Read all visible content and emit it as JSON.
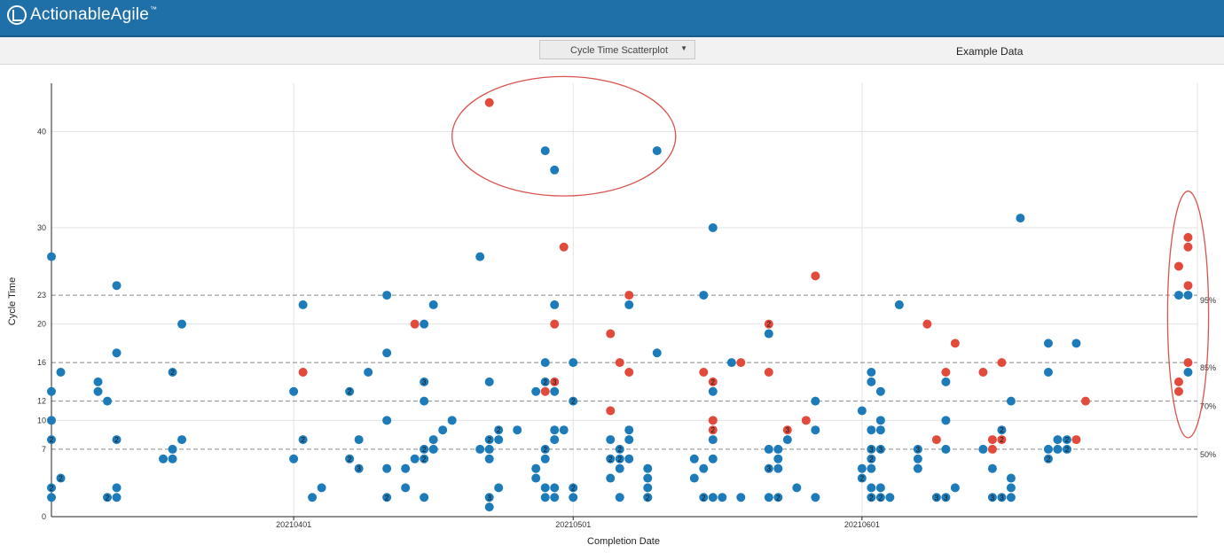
{
  "app": {
    "name": "ActionableAgile",
    "tm": "™"
  },
  "toolbar": {
    "chart_select": "Cycle Time Scatterplot",
    "dataset_label": "Example Data"
  },
  "colors": {
    "header": "#1f6fa8",
    "blue_point": "#1c7bb8",
    "red_point": "#e24a3b",
    "highlight": "#d9534f"
  },
  "chart_data": {
    "type": "scatter",
    "xlabel": "Completion Date",
    "ylabel": "Cycle Time",
    "x_range": [
      "2021-03-06",
      "2021-07-07"
    ],
    "y_range": [
      0,
      45
    ],
    "x_ticks": [
      {
        "date": "2021-04-01",
        "label": "20210401"
      },
      {
        "date": "2021-05-01",
        "label": "20210501"
      },
      {
        "date": "2021-06-01",
        "label": "20210601"
      }
    ],
    "y_ticks": [
      {
        "v": 0,
        "label": "0"
      },
      {
        "v": 7,
        "label": "7"
      },
      {
        "v": 10,
        "label": "10"
      },
      {
        "v": 12,
        "label": "12"
      },
      {
        "v": 16,
        "label": "16"
      },
      {
        "v": 20,
        "label": "20"
      },
      {
        "v": 23,
        "label": "23"
      },
      {
        "v": 30,
        "label": "30"
      },
      {
        "v": 40,
        "label": "40"
      }
    ],
    "percentiles": [
      {
        "label": "95%",
        "value": 23
      },
      {
        "label": "85%",
        "value": 16
      },
      {
        "label": "70%",
        "value": 12
      },
      {
        "label": "50%",
        "value": 7
      }
    ],
    "highlights": [
      {
        "cx": "2021-04-30",
        "cy": 39.5,
        "rx": "12d",
        "ry": 6.2
      },
      {
        "cx": "2021-07-06",
        "cy": 21,
        "rx": "2.2d",
        "ry": 12.8
      }
    ],
    "points": [
      {
        "x": "2021-03-06",
        "y": 27,
        "c": "b"
      },
      {
        "x": "2021-03-06",
        "y": 13,
        "c": "b"
      },
      {
        "x": "2021-03-06",
        "y": 10,
        "c": "b"
      },
      {
        "x": "2021-03-06",
        "y": 8,
        "c": "b",
        "n": 2
      },
      {
        "x": "2021-03-06",
        "y": 3,
        "c": "b",
        "n": 2
      },
      {
        "x": "2021-03-06",
        "y": 2,
        "c": "b"
      },
      {
        "x": "2021-03-07",
        "y": 15,
        "c": "b"
      },
      {
        "x": "2021-03-07",
        "y": 4,
        "c": "b",
        "n": 2
      },
      {
        "x": "2021-03-11",
        "y": 14,
        "c": "b"
      },
      {
        "x": "2021-03-11",
        "y": 13,
        "c": "b"
      },
      {
        "x": "2021-03-12",
        "y": 12,
        "c": "b"
      },
      {
        "x": "2021-03-12",
        "y": 2,
        "c": "b",
        "n": 2
      },
      {
        "x": "2021-03-13",
        "y": 24,
        "c": "b"
      },
      {
        "x": "2021-03-13",
        "y": 17,
        "c": "b"
      },
      {
        "x": "2021-03-13",
        "y": 8,
        "c": "b",
        "n": 2
      },
      {
        "x": "2021-03-13",
        "y": 3,
        "c": "b"
      },
      {
        "x": "2021-03-13",
        "y": 2,
        "c": "b"
      },
      {
        "x": "2021-03-18",
        "y": 6,
        "c": "b"
      },
      {
        "x": "2021-03-19",
        "y": 7,
        "c": "b"
      },
      {
        "x": "2021-03-19",
        "y": 6,
        "c": "b"
      },
      {
        "x": "2021-03-19",
        "y": 15,
        "c": "b",
        "n": 2
      },
      {
        "x": "2021-03-20",
        "y": 20,
        "c": "b"
      },
      {
        "x": "2021-03-20",
        "y": 8,
        "c": "b"
      },
      {
        "x": "2021-04-01",
        "y": 13,
        "c": "b"
      },
      {
        "x": "2021-04-01",
        "y": 6,
        "c": "b"
      },
      {
        "x": "2021-04-02",
        "y": 22,
        "c": "b"
      },
      {
        "x": "2021-04-02",
        "y": 15,
        "c": "r"
      },
      {
        "x": "2021-04-02",
        "y": 8,
        "c": "b",
        "n": 2
      },
      {
        "x": "2021-04-03",
        "y": 2,
        "c": "b"
      },
      {
        "x": "2021-04-04",
        "y": 3,
        "c": "b"
      },
      {
        "x": "2021-04-07",
        "y": 13,
        "c": "b",
        "n": 2
      },
      {
        "x": "2021-04-07",
        "y": 6,
        "c": "b",
        "n": 2
      },
      {
        "x": "2021-04-08",
        "y": 8,
        "c": "b"
      },
      {
        "x": "2021-04-08",
        "y": 5,
        "c": "b",
        "n": 3
      },
      {
        "x": "2021-04-09",
        "y": 15,
        "c": "b"
      },
      {
        "x": "2021-04-11",
        "y": 23,
        "c": "b"
      },
      {
        "x": "2021-04-11",
        "y": 17,
        "c": "b"
      },
      {
        "x": "2021-04-11",
        "y": 10,
        "c": "b"
      },
      {
        "x": "2021-04-11",
        "y": 5,
        "c": "b"
      },
      {
        "x": "2021-04-11",
        "y": 2,
        "c": "b",
        "n": 2
      },
      {
        "x": "2021-04-13",
        "y": 5,
        "c": "b"
      },
      {
        "x": "2021-04-13",
        "y": 3,
        "c": "b"
      },
      {
        "x": "2021-04-14",
        "y": 20,
        "c": "r"
      },
      {
        "x": "2021-04-14",
        "y": 6,
        "c": "b"
      },
      {
        "x": "2021-04-15",
        "y": 20,
        "c": "b"
      },
      {
        "x": "2021-04-15",
        "y": 14,
        "c": "b",
        "n": 3
      },
      {
        "x": "2021-04-15",
        "y": 12,
        "c": "b"
      },
      {
        "x": "2021-04-15",
        "y": 7,
        "c": "b",
        "n": 2
      },
      {
        "x": "2021-04-15",
        "y": 6,
        "c": "b",
        "n": 2
      },
      {
        "x": "2021-04-15",
        "y": 2,
        "c": "b"
      },
      {
        "x": "2021-04-16",
        "y": 22,
        "c": "b"
      },
      {
        "x": "2021-04-16",
        "y": 8,
        "c": "b"
      },
      {
        "x": "2021-04-16",
        "y": 7,
        "c": "b"
      },
      {
        "x": "2021-04-17",
        "y": 9,
        "c": "b"
      },
      {
        "x": "2021-04-18",
        "y": 10,
        "c": "b"
      },
      {
        "x": "2021-04-21",
        "y": 7,
        "c": "b"
      },
      {
        "x": "2021-04-21",
        "y": 27,
        "c": "b"
      },
      {
        "x": "2021-04-22",
        "y": 43,
        "c": "r"
      },
      {
        "x": "2021-04-22",
        "y": 14,
        "c": "b"
      },
      {
        "x": "2021-04-22",
        "y": 8,
        "c": "b",
        "n": 2
      },
      {
        "x": "2021-04-22",
        "y": 7,
        "c": "b"
      },
      {
        "x": "2021-04-22",
        "y": 6,
        "c": "b"
      },
      {
        "x": "2021-04-22",
        "y": 2,
        "c": "b",
        "n": 3
      },
      {
        "x": "2021-04-22",
        "y": 1,
        "c": "b"
      },
      {
        "x": "2021-04-23",
        "y": 9,
        "c": "b",
        "n": 2
      },
      {
        "x": "2021-04-23",
        "y": 8,
        "c": "b"
      },
      {
        "x": "2021-04-23",
        "y": 3,
        "c": "b"
      },
      {
        "x": "2021-04-25",
        "y": 9,
        "c": "b"
      },
      {
        "x": "2021-04-27",
        "y": 13,
        "c": "b"
      },
      {
        "x": "2021-04-27",
        "y": 5,
        "c": "b"
      },
      {
        "x": "2021-04-27",
        "y": 4,
        "c": "b"
      },
      {
        "x": "2021-04-28",
        "y": 38,
        "c": "b"
      },
      {
        "x": "2021-04-28",
        "y": 16,
        "c": "b"
      },
      {
        "x": "2021-04-28",
        "y": 14,
        "c": "b",
        "n": 2
      },
      {
        "x": "2021-04-28",
        "y": 13,
        "c": "r"
      },
      {
        "x": "2021-04-28",
        "y": 7,
        "c": "b",
        "n": 2
      },
      {
        "x": "2021-04-28",
        "y": 6,
        "c": "b"
      },
      {
        "x": "2021-04-28",
        "y": 3,
        "c": "b"
      },
      {
        "x": "2021-04-28",
        "y": 2,
        "c": "b"
      },
      {
        "x": "2021-04-29",
        "y": 36,
        "c": "b"
      },
      {
        "x": "2021-04-29",
        "y": 22,
        "c": "b"
      },
      {
        "x": "2021-04-29",
        "y": 20,
        "c": "r"
      },
      {
        "x": "2021-04-29",
        "y": 14,
        "c": "r",
        "n": 3
      },
      {
        "x": "2021-04-29",
        "y": 13,
        "c": "b"
      },
      {
        "x": "2021-04-29",
        "y": 9,
        "c": "b"
      },
      {
        "x": "2021-04-29",
        "y": 8,
        "c": "b"
      },
      {
        "x": "2021-04-29",
        "y": 3,
        "c": "b"
      },
      {
        "x": "2021-04-29",
        "y": 2,
        "c": "b"
      },
      {
        "x": "2021-04-30",
        "y": 28,
        "c": "r"
      },
      {
        "x": "2021-04-30",
        "y": 9,
        "c": "b"
      },
      {
        "x": "2021-05-01",
        "y": 16,
        "c": "b"
      },
      {
        "x": "2021-05-01",
        "y": 12,
        "c": "b",
        "n": 2
      },
      {
        "x": "2021-05-01",
        "y": 3,
        "c": "b",
        "n": 2
      },
      {
        "x": "2021-05-01",
        "y": 2,
        "c": "b"
      },
      {
        "x": "2021-05-05",
        "y": 19,
        "c": "r"
      },
      {
        "x": "2021-05-05",
        "y": 11,
        "c": "r"
      },
      {
        "x": "2021-05-05",
        "y": 8,
        "c": "b"
      },
      {
        "x": "2021-05-05",
        "y": 6,
        "c": "b",
        "n": 2
      },
      {
        "x": "2021-05-05",
        "y": 4,
        "c": "b"
      },
      {
        "x": "2021-05-06",
        "y": 16,
        "c": "r"
      },
      {
        "x": "2021-05-06",
        "y": 7,
        "c": "b",
        "n": 2
      },
      {
        "x": "2021-05-06",
        "y": 6,
        "c": "b",
        "n": 2
      },
      {
        "x": "2021-05-06",
        "y": 5,
        "c": "b"
      },
      {
        "x": "2021-05-06",
        "y": 2,
        "c": "b"
      },
      {
        "x": "2021-05-07",
        "y": 23,
        "c": "r"
      },
      {
        "x": "2021-05-07",
        "y": 22,
        "c": "b"
      },
      {
        "x": "2021-05-07",
        "y": 15,
        "c": "r"
      },
      {
        "x": "2021-05-07",
        "y": 9,
        "c": "b"
      },
      {
        "x": "2021-05-07",
        "y": 8,
        "c": "b"
      },
      {
        "x": "2021-05-07",
        "y": 6,
        "c": "b"
      },
      {
        "x": "2021-05-09",
        "y": 2,
        "c": "b"
      },
      {
        "x": "2021-05-09",
        "y": 5,
        "c": "b"
      },
      {
        "x": "2021-05-09",
        "y": 4,
        "c": "b"
      },
      {
        "x": "2021-05-09",
        "y": 3,
        "c": "b"
      },
      {
        "x": "2021-05-09",
        "y": 2,
        "c": "b",
        "n": 2
      },
      {
        "x": "2021-05-10",
        "y": 38,
        "c": "b"
      },
      {
        "x": "2021-05-10",
        "y": 17,
        "c": "b"
      },
      {
        "x": "2021-05-14",
        "y": 6,
        "c": "b"
      },
      {
        "x": "2021-05-14",
        "y": 4,
        "c": "b"
      },
      {
        "x": "2021-05-15",
        "y": 23,
        "c": "b"
      },
      {
        "x": "2021-05-15",
        "y": 15,
        "c": "r"
      },
      {
        "x": "2021-05-15",
        "y": 5,
        "c": "b"
      },
      {
        "x": "2021-05-15",
        "y": 2,
        "c": "b",
        "n": 2
      },
      {
        "x": "2021-05-16",
        "y": 30,
        "c": "b"
      },
      {
        "x": "2021-05-16",
        "y": 14,
        "c": "r",
        "n": 2
      },
      {
        "x": "2021-05-16",
        "y": 13,
        "c": "b"
      },
      {
        "x": "2021-05-16",
        "y": 10,
        "c": "r"
      },
      {
        "x": "2021-05-16",
        "y": 9,
        "c": "r",
        "n": 2
      },
      {
        "x": "2021-05-16",
        "y": 8,
        "c": "b"
      },
      {
        "x": "2021-05-16",
        "y": 6,
        "c": "b"
      },
      {
        "x": "2021-05-16",
        "y": 2,
        "c": "b"
      },
      {
        "x": "2021-05-17",
        "y": 2,
        "c": "b"
      },
      {
        "x": "2021-05-18",
        "y": 16,
        "c": "b"
      },
      {
        "x": "2021-05-19",
        "y": 16,
        "c": "r"
      },
      {
        "x": "2021-05-19",
        "y": 2,
        "c": "b"
      },
      {
        "x": "2021-05-22",
        "y": 20,
        "c": "r",
        "n": 2
      },
      {
        "x": "2021-05-22",
        "y": 19,
        "c": "b"
      },
      {
        "x": "2021-05-22",
        "y": 15,
        "c": "r"
      },
      {
        "x": "2021-05-22",
        "y": 7,
        "c": "b"
      },
      {
        "x": "2021-05-22",
        "y": 5,
        "c": "b",
        "n": 3
      },
      {
        "x": "2021-05-22",
        "y": 2,
        "c": "b"
      },
      {
        "x": "2021-05-23",
        "y": 7,
        "c": "b"
      },
      {
        "x": "2021-05-23",
        "y": 6,
        "c": "b"
      },
      {
        "x": "2021-05-23",
        "y": 5,
        "c": "b"
      },
      {
        "x": "2021-05-23",
        "y": 2,
        "c": "b",
        "n": 2
      },
      {
        "x": "2021-05-24",
        "y": 8,
        "c": "b"
      },
      {
        "x": "2021-05-24",
        "y": 9,
        "c": "r",
        "n": 3
      },
      {
        "x": "2021-05-25",
        "y": 3,
        "c": "b"
      },
      {
        "x": "2021-05-26",
        "y": 10,
        "c": "r"
      },
      {
        "x": "2021-05-27",
        "y": 25,
        "c": "r"
      },
      {
        "x": "2021-05-27",
        "y": 12,
        "c": "b"
      },
      {
        "x": "2021-05-27",
        "y": 9,
        "c": "b"
      },
      {
        "x": "2021-05-27",
        "y": 2,
        "c": "b"
      },
      {
        "x": "2021-06-01",
        "y": 11,
        "c": "b"
      },
      {
        "x": "2021-06-01",
        "y": 5,
        "c": "b"
      },
      {
        "x": "2021-06-01",
        "y": 4,
        "c": "b",
        "n": 2
      },
      {
        "x": "2021-06-02",
        "y": 15,
        "c": "b"
      },
      {
        "x": "2021-06-02",
        "y": 14,
        "c": "b"
      },
      {
        "x": "2021-06-02",
        "y": 9,
        "c": "b"
      },
      {
        "x": "2021-06-02",
        "y": 6,
        "c": "b",
        "n": 2
      },
      {
        "x": "2021-06-02",
        "y": 5,
        "c": "b"
      },
      {
        "x": "2021-06-02",
        "y": 3,
        "c": "b"
      },
      {
        "x": "2021-06-02",
        "y": 2,
        "c": "b",
        "n": 2
      },
      {
        "x": "2021-06-03",
        "y": 13,
        "c": "b"
      },
      {
        "x": "2021-06-03",
        "y": 10,
        "c": "b"
      },
      {
        "x": "2021-06-03",
        "y": 9,
        "c": "b"
      },
      {
        "x": "2021-06-03",
        "y": 7,
        "c": "b",
        "n": 3
      },
      {
        "x": "2021-06-03",
        "y": 3,
        "c": "b"
      },
      {
        "x": "2021-06-03",
        "y": 2,
        "c": "b",
        "n": 2
      },
      {
        "x": "2021-06-04",
        "y": 2,
        "c": "b"
      },
      {
        "x": "2021-06-05",
        "y": 22,
        "c": "b"
      },
      {
        "x": "2021-06-02",
        "y": 7,
        "c": "b",
        "n": 3
      },
      {
        "x": "2021-06-07",
        "y": 7,
        "c": "b",
        "n": 3
      },
      {
        "x": "2021-06-07",
        "y": 6,
        "c": "b"
      },
      {
        "x": "2021-06-07",
        "y": 5,
        "c": "b"
      },
      {
        "x": "2021-06-08",
        "y": 20,
        "c": "r"
      },
      {
        "x": "2021-06-09",
        "y": 8,
        "c": "r"
      },
      {
        "x": "2021-06-09",
        "y": 2,
        "c": "b",
        "n": 3
      },
      {
        "x": "2021-06-10",
        "y": 15,
        "c": "r"
      },
      {
        "x": "2021-06-10",
        "y": 14,
        "c": "b"
      },
      {
        "x": "2021-06-10",
        "y": 10,
        "c": "b"
      },
      {
        "x": "2021-06-10",
        "y": 7,
        "c": "b"
      },
      {
        "x": "2021-06-10",
        "y": 2,
        "c": "b",
        "n": 3
      },
      {
        "x": "2021-06-11",
        "y": 3,
        "c": "b"
      },
      {
        "x": "2021-06-11",
        "y": 18,
        "c": "r"
      },
      {
        "x": "2021-06-14",
        "y": 15,
        "c": "r"
      },
      {
        "x": "2021-06-14",
        "y": 7,
        "c": "b"
      },
      {
        "x": "2021-06-15",
        "y": 8,
        "c": "r"
      },
      {
        "x": "2021-06-15",
        "y": 7,
        "c": "r"
      },
      {
        "x": "2021-06-15",
        "y": 5,
        "c": "b"
      },
      {
        "x": "2021-06-15",
        "y": 2,
        "c": "b",
        "n": 3
      },
      {
        "x": "2021-06-16",
        "y": 16,
        "c": "r"
      },
      {
        "x": "2021-06-16",
        "y": 9,
        "c": "b",
        "n": 2
      },
      {
        "x": "2021-06-16",
        "y": 8,
        "c": "r",
        "n": 2
      },
      {
        "x": "2021-06-16",
        "y": 2,
        "c": "b",
        "n": 3
      },
      {
        "x": "2021-06-17",
        "y": 12,
        "c": "b"
      },
      {
        "x": "2021-06-17",
        "y": 4,
        "c": "b"
      },
      {
        "x": "2021-06-17",
        "y": 3,
        "c": "b"
      },
      {
        "x": "2021-06-17",
        "y": 2,
        "c": "b"
      },
      {
        "x": "2021-06-18",
        "y": 31,
        "c": "b"
      },
      {
        "x": "2021-06-21",
        "y": 18,
        "c": "b"
      },
      {
        "x": "2021-06-21",
        "y": 15,
        "c": "b"
      },
      {
        "x": "2021-06-21",
        "y": 7,
        "c": "b"
      },
      {
        "x": "2021-06-21",
        "y": 6,
        "c": "b",
        "n": 2
      },
      {
        "x": "2021-06-22",
        "y": 8,
        "c": "b"
      },
      {
        "x": "2021-06-22",
        "y": 7,
        "c": "b"
      },
      {
        "x": "2021-06-23",
        "y": 8,
        "c": "b",
        "n": 2
      },
      {
        "x": "2021-06-23",
        "y": 7,
        "c": "b",
        "n": 2
      },
      {
        "x": "2021-06-24",
        "y": 18,
        "c": "b"
      },
      {
        "x": "2021-06-24",
        "y": 8,
        "c": "r"
      },
      {
        "x": "2021-06-25",
        "y": 12,
        "c": "r"
      },
      {
        "x": "2021-07-05",
        "y": 26,
        "c": "r"
      },
      {
        "x": "2021-07-05",
        "y": 23,
        "c": "b"
      },
      {
        "x": "2021-07-05",
        "y": 14,
        "c": "r"
      },
      {
        "x": "2021-07-05",
        "y": 13,
        "c": "r"
      },
      {
        "x": "2021-07-06",
        "y": 29,
        "c": "r"
      },
      {
        "x": "2021-07-06",
        "y": 28,
        "c": "r"
      },
      {
        "x": "2021-07-06",
        "y": 24,
        "c": "r"
      },
      {
        "x": "2021-07-06",
        "y": 23,
        "c": "b"
      },
      {
        "x": "2021-07-06",
        "y": 16,
        "c": "r"
      },
      {
        "x": "2021-07-06",
        "y": 15,
        "c": "b"
      }
    ]
  }
}
